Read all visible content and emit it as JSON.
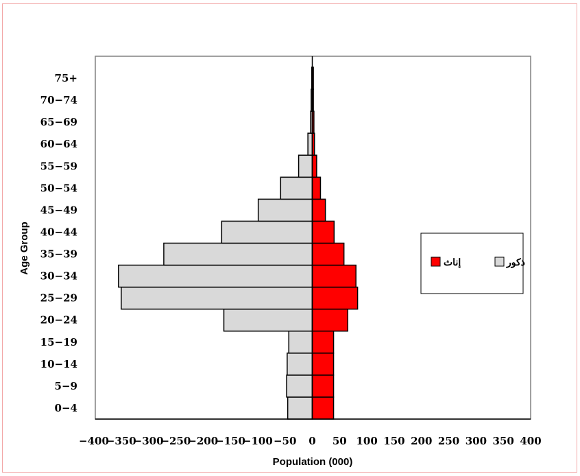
{
  "chart_data": {
    "type": "bar",
    "orientation": "horizontal",
    "subtype": "population-pyramid",
    "categories": [
      "0-4",
      "5-9",
      "10-14",
      "15-19",
      "20-24",
      "25-29",
      "30-34",
      "35-39",
      "40-44",
      "45-49",
      "50-54",
      "55-59",
      "60-64",
      "65-69",
      "70-74",
      "75+"
    ],
    "series": [
      {
        "name": "ذكور",
        "color": "#d9d9d9",
        "values": [
          -45,
          -47,
          -46,
          -43,
          -162,
          -350,
          -355,
          -272,
          -166,
          -99,
          -58,
          -25,
          -8,
          -3,
          -2,
          -1
        ]
      },
      {
        "name": "إناث",
        "color": "#ff0000",
        "values": [
          39,
          39,
          39,
          39,
          65,
          83,
          80,
          58,
          40,
          24,
          15,
          8,
          4,
          3,
          2,
          2
        ]
      }
    ],
    "title": "",
    "xlabel": "Population (000)",
    "ylabel": "Age Group",
    "xlim": [
      -400,
      400
    ],
    "x_ticks": [
      "−400",
      "−350",
      "−300",
      "−250",
      "−200",
      "−150",
      "−100",
      "−50",
      "0",
      "50",
      "100",
      "150",
      "200",
      "250",
      "300",
      "350",
      "400"
    ],
    "y_tick_labels": [
      "0−4",
      "5−9",
      "10−14",
      "15−19",
      "20−24",
      "25−29",
      "30−34",
      "35−39",
      "40−44",
      "45−49",
      "50−54",
      "55−59",
      "60−64",
      "65−69",
      "70−74",
      "75+"
    ],
    "grid": false,
    "legend_position": "right"
  }
}
